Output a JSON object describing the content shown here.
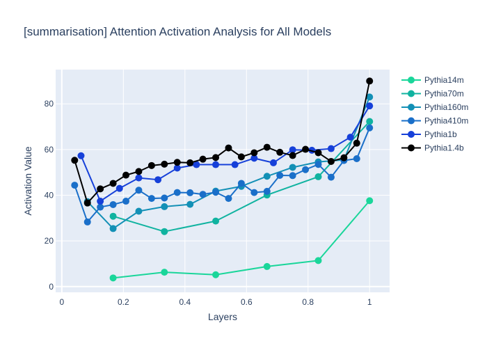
{
  "chart_data": {
    "type": "line",
    "title": "[summarisation] Attention Activation Analysis for All Models",
    "xlabel": "Layers",
    "ylabel": "Activation Value",
    "xlim": [
      -0.02,
      1.065
    ],
    "ylim": [
      -2.5,
      95
    ],
    "x_ticks": [
      0,
      0.2,
      0.4,
      0.6,
      0.8,
      1
    ],
    "x_tick_labels": [
      "0",
      "0.2",
      "0.4",
      "0.6",
      "0.8",
      "1"
    ],
    "y_ticks": [
      0,
      20,
      40,
      60,
      80
    ],
    "y_tick_labels": [
      "0",
      "20",
      "40",
      "60",
      "80"
    ],
    "grid": true,
    "legend_position": "right",
    "series": [
      {
        "name": "Pythia14m",
        "color": "#1ad69a",
        "x": [
          0.1667,
          0.3333,
          0.5,
          0.6667,
          0.8333,
          1.0
        ],
        "y": [
          3.8,
          6.3,
          5.2,
          8.8,
          11.4,
          37.6
        ]
      },
      {
        "name": "Pythia70m",
        "color": "#10b3a0",
        "x": [
          0.1667,
          0.3333,
          0.5,
          0.6667,
          0.8333,
          1.0
        ],
        "y": [
          30.8,
          24.1,
          28.7,
          40.1,
          48.1,
          72.3
        ]
      },
      {
        "name": "Pythia160m",
        "color": "#1390b6",
        "x": [
          0.0833,
          0.1667,
          0.25,
          0.3333,
          0.4167,
          0.5,
          0.5833,
          0.6667,
          0.75,
          0.8333,
          0.9167,
          1.0
        ],
        "y": [
          37.2,
          25.4,
          33.0,
          35.0,
          36.0,
          41.8,
          43.9,
          48.3,
          52.2,
          54.6,
          55.5,
          83.0
        ]
      },
      {
        "name": "Pythia410m",
        "color": "#1a6fc9",
        "x": [
          0.0417,
          0.0833,
          0.125,
          0.1667,
          0.2083,
          0.25,
          0.2917,
          0.3333,
          0.375,
          0.4167,
          0.4583,
          0.5,
          0.5417,
          0.5833,
          0.625,
          0.6667,
          0.7083,
          0.75,
          0.7917,
          0.8333,
          0.875,
          0.9167,
          0.9583,
          1.0
        ],
        "y": [
          44.4,
          28.3,
          34.8,
          35.9,
          37.4,
          42.2,
          38.6,
          38.8,
          41.2,
          41.1,
          40.4,
          41.3,
          38.6,
          45.2,
          41.2,
          41.7,
          48.7,
          48.6,
          51.2,
          53.5,
          47.9,
          55.2,
          56.0,
          69.5
        ]
      },
      {
        "name": "Pythia1b",
        "color": "#1640d9",
        "x": [
          0.0625,
          0.125,
          0.1875,
          0.25,
          0.3125,
          0.375,
          0.4375,
          0.5,
          0.5625,
          0.625,
          0.6875,
          0.75,
          0.8125,
          0.875,
          0.9375,
          1.0
        ],
        "y": [
          57.3,
          37.4,
          43.0,
          47.6,
          46.8,
          51.9,
          53.4,
          53.4,
          53.4,
          56.2,
          54.2,
          59.9,
          59.7,
          60.4,
          65.4,
          79.1
        ]
      },
      {
        "name": "Pythia1.4b",
        "color": "#000000",
        "x": [
          0.0417,
          0.0833,
          0.125,
          0.1667,
          0.2083,
          0.25,
          0.2917,
          0.3333,
          0.375,
          0.4167,
          0.4583,
          0.5,
          0.5417,
          0.5833,
          0.625,
          0.6667,
          0.7083,
          0.75,
          0.7917,
          0.8333,
          0.875,
          0.9167,
          0.9583,
          1.0
        ],
        "y": [
          55.3,
          36.6,
          42.8,
          45.2,
          48.8,
          50.4,
          53.0,
          53.6,
          54.4,
          54.2,
          55.8,
          56.5,
          60.7,
          56.8,
          58.6,
          61.0,
          58.8,
          57.4,
          60.1,
          58.6,
          54.8,
          56.4,
          62.8,
          90.0
        ]
      }
    ]
  }
}
